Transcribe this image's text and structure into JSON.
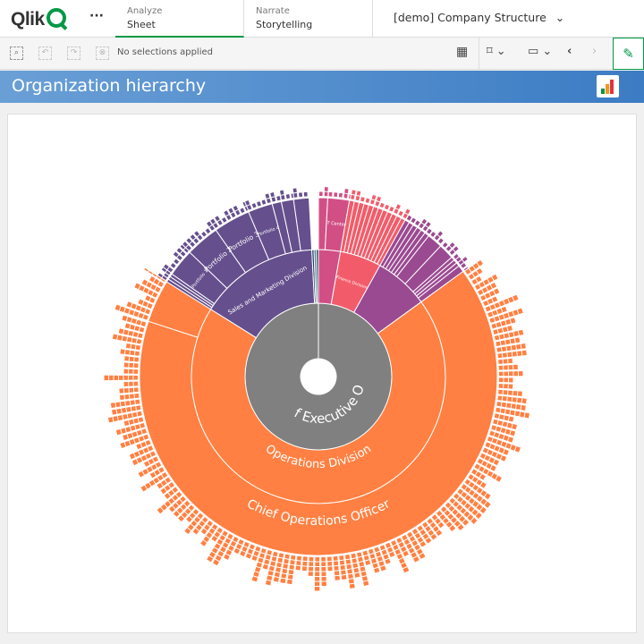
{
  "header": {
    "logo": "Qlik",
    "more": "···",
    "tabs": [
      {
        "sub": "Analyze",
        "main": "Sheet",
        "active": true
      },
      {
        "sub": "Narrate",
        "main": "Storytelling",
        "active": false
      }
    ],
    "app_name": "[demo] Company Structure",
    "app_chevron": "⌄"
  },
  "toolbar": {
    "no_selections": "No selections applied",
    "icons": [
      "smart-search-icon",
      "step-back-icon",
      "step-forward-icon",
      "clear-selections-icon",
      "sheets-grid-icon",
      "bookmark-icon",
      "sheet-view-icon",
      "prev-sheet-icon",
      "next-sheet-icon",
      "edit-pencil-icon"
    ]
  },
  "sheet": {
    "title": "Organization hierarchy"
  },
  "colors": {
    "orange": "#FF8042",
    "purple": "#654F8D",
    "pink": "#D14F85",
    "coral": "#F25C6A",
    "magenta": "#9A4A91",
    "gray": "#808080",
    "dark": "#1F3F5B",
    "accent": "#009845"
  },
  "chart_data": {
    "type": "sunburst",
    "root": {
      "name": "Chief Executive Officer",
      "color": "#808080",
      "children": [
        {
          "name": "",
          "value": 10,
          "color": "#D14F85",
          "children": [
            {
              "name": "",
              "value": 3
            },
            {
              "name": "IT Center",
              "value": 7
            }
          ]
        },
        {
          "name": "Finance Division",
          "value": 19,
          "color": "#F25C6A",
          "children": [
            {
              "name": "",
              "value": 1.6
            },
            {
              "name": "",
              "value": 1.6
            },
            {
              "name": "",
              "value": 1.6
            },
            {
              "name": "",
              "value": 1.6
            },
            {
              "name": "",
              "value": 1.6
            },
            {
              "name": "",
              "value": 1.6
            },
            {
              "name": "",
              "value": 1.6
            },
            {
              "name": "",
              "value": 1.6
            },
            {
              "name": "",
              "value": 1.6
            },
            {
              "name": "",
              "value": 1.6
            },
            {
              "name": "",
              "value": 1.6
            },
            {
              "name": "",
              "value": 1.4
            }
          ]
        },
        {
          "name": "",
          "value": 25,
          "color": "#9A4A91",
          "children": [
            {
              "name": "",
              "value": 1.5
            },
            {
              "name": "",
              "value": 1.5
            },
            {
              "name": "",
              "value": 1.5
            },
            {
              "name": "",
              "value": 1.5
            },
            {
              "name": "",
              "value": 1.5
            },
            {
              "name": "",
              "value": 1.5
            },
            {
              "name": "",
              "value": 5
            },
            {
              "name": "",
              "value": 5
            },
            {
              "name": "",
              "value": 1.2
            },
            {
              "name": "",
              "value": 1.2
            },
            {
              "name": "",
              "value": 1.2
            },
            {
              "name": "",
              "value": 2.2
            }
          ]
        },
        {
          "name": "Operations Division",
          "value": 248,
          "color": "#FF8042",
          "children": [
            {
              "name": "Chief Operations Officer",
              "value": 234
            },
            {
              "name": "",
              "value": 14
            }
          ]
        },
        {
          "name": "Sales and Marketing Division",
          "value": 55,
          "color": "#654F8D",
          "children": [
            {
              "name": "",
              "value": 1
            },
            {
              "name": "",
              "value": 1
            },
            {
              "name": "",
              "value": 1
            },
            {
              "name": "Portfolio 1",
              "value": 9
            },
            {
              "name": "Portfolio 2",
              "value": 11
            },
            {
              "name": "Portfolio 3",
              "value": 12
            },
            {
              "name": "Portfolio 4",
              "value": 8
            },
            {
              "name": "",
              "value": 3
            },
            {
              "name": "",
              "value": 4
            },
            {
              "name": "",
              "value": 5
            }
          ]
        },
        {
          "name": "",
          "value": 1,
          "color": "#1F3F5B",
          "children": []
        },
        {
          "name": "",
          "value": 1,
          "color": "#4C7A99",
          "children": []
        },
        {
          "name": "",
          "value": 1,
          "color": "#1F3F5B",
          "children": []
        }
      ]
    }
  }
}
